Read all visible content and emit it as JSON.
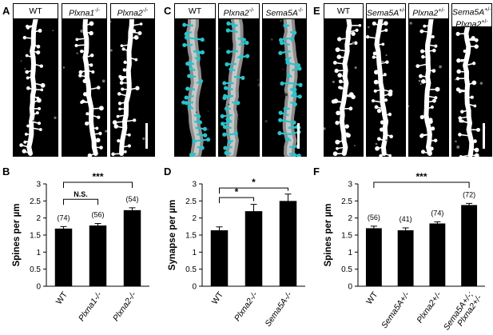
{
  "panels": {
    "A": {
      "letter": "A",
      "labels": [
        {
          "text": "WT",
          "sup": ""
        },
        {
          "text": "Plxna1",
          "sup": "-/-"
        },
        {
          "text": "Plxna2",
          "sup": "-/-"
        }
      ]
    },
    "C": {
      "letter": "C",
      "labels": [
        {
          "text": "WT",
          "sup": ""
        },
        {
          "text": "Plxna2",
          "sup": "-/-"
        },
        {
          "text": "Sema5A",
          "sup": "-/-"
        }
      ]
    },
    "E": {
      "letter": "E",
      "labels": [
        {
          "text": "WT",
          "sup": ""
        },
        {
          "text": "Sema5A",
          "sup": "+/-"
        },
        {
          "text": "Plxna2",
          "sup": "+/-"
        },
        {
          "text": "Sema5A",
          "sup": "+/-",
          "line2": "Plxna2",
          "sup2": "+/-"
        }
      ]
    }
  },
  "colors": {
    "bar": "#000000",
    "spine_overlay": "#27c4cc",
    "dendrite_overlay": "#9a9a9a"
  },
  "chart_data": [
    {
      "panel": "B",
      "type": "bar",
      "categories": [
        "WT",
        "Plxna1-/-",
        "Plxna2-/-"
      ],
      "values": [
        1.69,
        1.78,
        2.23
      ],
      "errors": [
        0.06,
        0.06,
        0.07
      ],
      "n_labels": [
        "(74)",
        "(56)",
        "(54)"
      ],
      "ylabel": "Spines per µm",
      "ylim": [
        0,
        3
      ],
      "yticks": [
        "0",
        "0.5",
        "1",
        "1.5",
        "2",
        "2.5",
        "3"
      ],
      "significance": [
        {
          "from": 0,
          "to": 1,
          "label": "N.S."
        },
        {
          "from": 0,
          "to": 2,
          "label": "***"
        }
      ]
    },
    {
      "panel": "D",
      "type": "bar",
      "categories": [
        "WT",
        "Plxna2-/-",
        "Sema5A-/-"
      ],
      "values": [
        1.64,
        2.2,
        2.5
      ],
      "errors": [
        0.1,
        0.2,
        0.2
      ],
      "n_labels": [
        "",
        "",
        ""
      ],
      "ylabel": "Synapse per µm",
      "ylim": [
        0,
        3
      ],
      "yticks": [
        "0",
        "0.5",
        "1",
        "1.5",
        "2",
        "2.5",
        "3"
      ],
      "significance": [
        {
          "from": 0,
          "to": 1,
          "label": "*"
        },
        {
          "from": 0,
          "to": 2,
          "label": "*"
        }
      ]
    },
    {
      "panel": "F",
      "type": "bar",
      "categories": [
        "WT",
        "Sema5A+/-",
        "Plxna2+/-",
        "Sema5A+/-;\nPlxna2+/-"
      ],
      "values": [
        1.7,
        1.64,
        1.84,
        2.38
      ],
      "errors": [
        0.06,
        0.07,
        0.05,
        0.05
      ],
      "n_labels": [
        "(56)",
        "(41)",
        "(74)",
        "(72)"
      ],
      "ylabel": "Spines per µm",
      "ylim": [
        0,
        3
      ],
      "yticks": [
        "0",
        "0.5",
        "1",
        "1.5",
        "2",
        "2.5",
        "3"
      ],
      "significance": [
        {
          "from": 0,
          "to": 3,
          "label": "***"
        }
      ]
    }
  ]
}
